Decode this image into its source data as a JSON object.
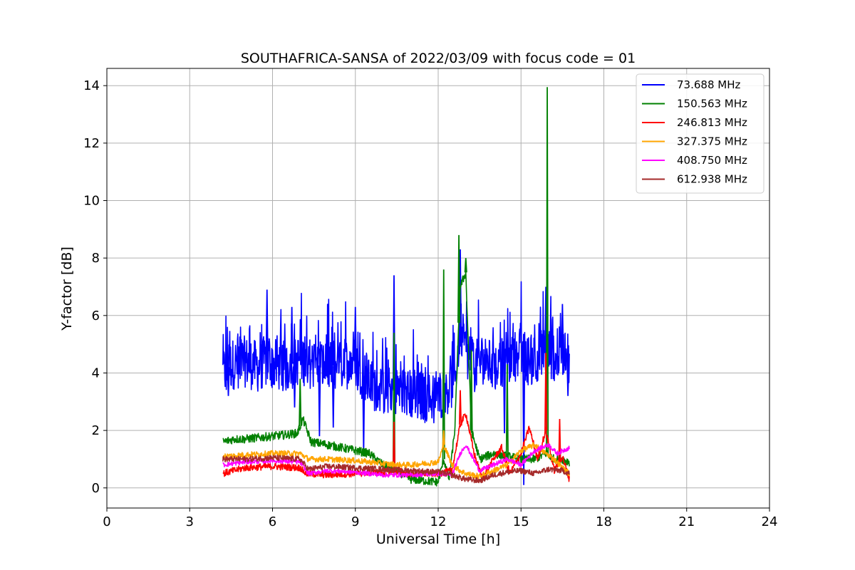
{
  "chart_data": {
    "type": "line",
    "title": "SOUTHAFRICA-SANSA of 2022/03/09 with focus code = 01",
    "xlabel": "Universal Time [h]",
    "ylabel": "Y-factor [dB]",
    "xlim": [
      0,
      24
    ],
    "ylim": [
      -0.7,
      14.6
    ],
    "xticks": [
      0,
      3,
      6,
      9,
      12,
      15,
      18,
      21,
      24
    ],
    "yticks": [
      0,
      2,
      4,
      6,
      8,
      10,
      12,
      14
    ],
    "grid": true,
    "legend_position": "top-right",
    "series": [
      {
        "name": "  73.688 MHz",
        "color": "#0000ff",
        "x": [
          4.2,
          4.5,
          5.0,
          5.5,
          5.8,
          6.0,
          6.5,
          7.0,
          7.5,
          8.0,
          8.5,
          9.0,
          9.3,
          9.6,
          10.0,
          10.4,
          10.8,
          11.2,
          11.6,
          12.0,
          12.3,
          12.6,
          12.8,
          13.0,
          13.3,
          13.6,
          14.0,
          14.4,
          14.8,
          15.0,
          15.3,
          15.6,
          15.9,
          16.2,
          16.5,
          16.75
        ],
        "y": [
          4.0,
          4.3,
          4.4,
          4.2,
          4.5,
          4.3,
          4.2,
          4.5,
          4.3,
          4.2,
          4.3,
          4.4,
          3.9,
          3.6,
          3.4,
          3.5,
          3.3,
          3.2,
          3.1,
          3.2,
          3.4,
          3.8,
          5.5,
          4.8,
          4.2,
          4.5,
          4.2,
          4.4,
          4.6,
          4.8,
          4.4,
          4.6,
          4.8,
          4.6,
          4.8,
          4.3
        ],
        "peaks": [
          [
            5.8,
            6.9
          ],
          [
            6.7,
            6.3
          ],
          [
            9.0,
            6.3
          ],
          [
            10.4,
            7.4
          ],
          [
            12.8,
            8.3
          ],
          [
            15.9,
            7.0
          ],
          [
            16.5,
            6.4
          ]
        ],
        "dips": [
          [
            4.4,
            3.2
          ],
          [
            6.8,
            2.8
          ],
          [
            7.7,
            1.8
          ],
          [
            8.2,
            2.1
          ],
          [
            9.3,
            1.2
          ],
          [
            10.3,
            2.7
          ],
          [
            11.4,
            2.6
          ],
          [
            14.4,
            1.9
          ],
          [
            15.1,
            0.1
          ],
          [
            16.7,
            3.2
          ]
        ]
      },
      {
        "name": "150.563 MHz",
        "color": "#008000",
        "x": [
          4.2,
          4.6,
          5.0,
          5.5,
          6.0,
          6.5,
          6.9,
          7.1,
          7.4,
          8.0,
          8.5,
          9.0,
          9.5,
          10.0,
          10.5,
          11.0,
          11.5,
          12.0,
          12.2,
          12.4,
          12.6,
          12.8,
          13.0,
          13.2,
          13.5,
          14.0,
          14.5,
          15.0,
          15.5,
          15.9,
          16.2,
          16.5,
          16.75
        ],
        "y": [
          1.6,
          1.7,
          1.7,
          1.75,
          1.8,
          1.85,
          1.9,
          2.4,
          1.6,
          1.5,
          1.4,
          1.3,
          1.2,
          0.8,
          0.6,
          0.3,
          0.25,
          0.2,
          1.0,
          0.3,
          2.0,
          7.0,
          7.5,
          2.0,
          1.0,
          1.2,
          1.1,
          1.0,
          1.0,
          1.2,
          1.0,
          1.0,
          0.9
        ],
        "peaks": [
          [
            7.0,
            3.8
          ],
          [
            10.4,
            5.4
          ],
          [
            12.2,
            7.6
          ],
          [
            12.75,
            8.8
          ],
          [
            13.0,
            8.0
          ],
          [
            13.2,
            4.8
          ],
          [
            14.5,
            4.3
          ],
          [
            15.95,
            13.95
          ]
        ],
        "dips": []
      },
      {
        "name": "246.813 MHz",
        "color": "#ff0000",
        "x": [
          4.2,
          5.0,
          6.0,
          7.0,
          7.2,
          8.0,
          9.0,
          10.0,
          10.4,
          11.0,
          12.0,
          12.5,
          12.8,
          13.0,
          13.3,
          13.6,
          14.0,
          14.3,
          14.6,
          15.0,
          15.3,
          15.6,
          15.9,
          16.2,
          16.5,
          16.75
        ],
        "y": [
          0.5,
          0.7,
          0.75,
          0.7,
          0.5,
          0.45,
          0.5,
          0.55,
          0.6,
          0.5,
          0.5,
          0.6,
          2.2,
          2.6,
          1.2,
          0.3,
          1.0,
          1.4,
          0.5,
          1.2,
          2.1,
          1.0,
          2.0,
          0.6,
          1.1,
          0.3
        ],
        "peaks": [
          [
            10.4,
            2.3
          ],
          [
            12.8,
            3.4
          ],
          [
            15.9,
            4.7
          ],
          [
            16.4,
            2.4
          ]
        ],
        "dips": []
      },
      {
        "name": "327.375 MHz",
        "color": "#ffa500",
        "x": [
          4.2,
          5.0,
          6.0,
          7.0,
          7.3,
          8.0,
          9.0,
          10.0,
          10.5,
          11.0,
          11.5,
          12.0,
          12.2,
          12.5,
          12.8,
          13.0,
          13.5,
          14.0,
          14.5,
          15.0,
          15.5,
          15.9,
          16.2,
          16.5,
          16.75
        ],
        "y": [
          1.1,
          1.15,
          1.2,
          1.2,
          1.0,
          1.0,
          0.95,
          0.85,
          0.8,
          0.8,
          0.85,
          0.9,
          1.5,
          0.8,
          0.6,
          0.5,
          0.4,
          0.6,
          0.8,
          1.3,
          1.5,
          1.2,
          1.0,
          0.7,
          0.5
        ],
        "peaks": [
          [
            12.2,
            2.0
          ]
        ],
        "dips": []
      },
      {
        "name": "408.750 MHz",
        "color": "#ff00ff",
        "x": [
          4.2,
          5.0,
          6.0,
          7.0,
          7.3,
          8.0,
          9.0,
          10.0,
          11.0,
          12.0,
          12.5,
          12.8,
          13.0,
          13.5,
          14.0,
          14.5,
          15.0,
          15.5,
          16.0,
          16.3,
          16.75
        ],
        "y": [
          0.8,
          0.9,
          0.95,
          0.9,
          0.5,
          0.6,
          0.55,
          0.45,
          0.45,
          0.5,
          0.45,
          1.2,
          1.5,
          0.6,
          0.8,
          1.0,
          0.8,
          1.3,
          1.5,
          1.2,
          1.4
        ],
        "peaks": [],
        "dips": []
      },
      {
        "name": "612.938 MHz",
        "color": "#a52a2a",
        "x": [
          4.2,
          5.0,
          6.0,
          7.0,
          7.3,
          8.0,
          9.0,
          10.0,
          11.0,
          12.0,
          12.5,
          13.0,
          13.5,
          14.0,
          14.5,
          15.0,
          15.5,
          16.0,
          16.5,
          16.75
        ],
        "y": [
          1.0,
          1.0,
          1.05,
          1.0,
          0.65,
          0.75,
          0.7,
          0.65,
          0.6,
          0.55,
          0.45,
          0.3,
          0.25,
          0.45,
          0.55,
          0.6,
          0.5,
          0.65,
          0.6,
          0.5
        ],
        "peaks": [],
        "dips": []
      }
    ]
  }
}
